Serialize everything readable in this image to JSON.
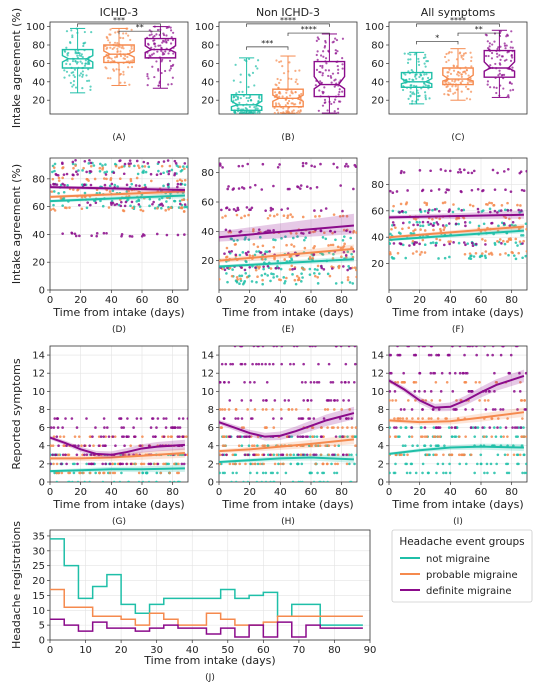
{
  "colors": {
    "not_migraine": "#1fbfa8",
    "probable_migraine": "#f58a4e",
    "definite_migraine": "#8b0b8b",
    "grid": "#e3e3e3",
    "frame": "#333333"
  },
  "chart_data": [
    {
      "id": "A",
      "type": "box",
      "panel_label": "(A)",
      "title": "ICHD-3",
      "ylabel": "Intake agreement (%)",
      "ylim": [
        5,
        105
      ],
      "yticks": [
        20,
        40,
        60,
        80,
        100
      ],
      "groups": [
        {
          "name": "not migraine",
          "min": 28,
          "q1": 55,
          "median": 65,
          "q3": 75,
          "max": 98
        },
        {
          "name": "probable migraine",
          "min": 36,
          "q1": 61,
          "median": 70,
          "q3": 80,
          "max": 98
        },
        {
          "name": "definite migraine",
          "min": 33,
          "q1": 66,
          "median": 75,
          "q3": 87,
          "max": 100
        }
      ],
      "significance": [
        {
          "from": 0,
          "to": 2,
          "label": "***"
        },
        {
          "from": 1,
          "to": 2,
          "label": "**"
        }
      ]
    },
    {
      "id": "B",
      "type": "box",
      "panel_label": "(B)",
      "title": "Non ICHD-3",
      "ylabel": "",
      "ylim": [
        5,
        105
      ],
      "yticks": [
        20,
        40,
        60,
        80,
        100
      ],
      "groups": [
        {
          "name": "not migraine",
          "min": 6,
          "q1": 9,
          "median": 15,
          "q3": 26,
          "max": 66
        },
        {
          "name": "probable migraine",
          "min": 6,
          "q1": 13,
          "median": 22,
          "q3": 32,
          "max": 68
        },
        {
          "name": "definite migraine",
          "min": 6,
          "q1": 24,
          "median": 37,
          "q3": 62,
          "max": 92
        }
      ],
      "significance": [
        {
          "from": 0,
          "to": 2,
          "label": "****"
        },
        {
          "from": 0,
          "to": 1,
          "label": "***"
        },
        {
          "from": 1,
          "to": 2,
          "label": "****"
        }
      ]
    },
    {
      "id": "C",
      "type": "box",
      "panel_label": "(C)",
      "title": "All symptoms",
      "ylabel": "",
      "ylim": [
        5,
        105
      ],
      "yticks": [
        20,
        40,
        60,
        80,
        100
      ],
      "groups": [
        {
          "name": "not migraine",
          "min": 16,
          "q1": 34,
          "median": 40,
          "q3": 50,
          "max": 72
        },
        {
          "name": "probable migraine",
          "min": 20,
          "q1": 37,
          "median": 43,
          "q3": 55,
          "max": 76
        },
        {
          "name": "definite migraine",
          "min": 23,
          "q1": 45,
          "median": 55,
          "q3": 74,
          "max": 96
        }
      ],
      "significance": [
        {
          "from": 0,
          "to": 2,
          "label": "****"
        },
        {
          "from": 0,
          "to": 1,
          "label": "*"
        },
        {
          "from": 1,
          "to": 2,
          "label": "**"
        }
      ]
    },
    {
      "id": "D",
      "type": "scatter",
      "panel_label": "(D)",
      "xlabel": "Time from intake (days)",
      "ylabel": "Intake agreement (%)",
      "xlim": [
        0,
        90
      ],
      "ylim": [
        0,
        95
      ],
      "xticks": [
        0,
        20,
        40,
        60,
        80
      ],
      "yticks": [
        0,
        20,
        40,
        60,
        80
      ],
      "grid": true,
      "series": [
        {
          "name": "not migraine",
          "trend_x": [
            0,
            88
          ],
          "trend_y": [
            64,
            68
          ],
          "band": [
            2,
            2
          ],
          "point_levels": [
            60,
            65,
            70,
            75,
            85,
            90
          ]
        },
        {
          "name": "probable migraine",
          "trend_x": [
            0,
            88
          ],
          "trend_y": [
            67,
            71
          ],
          "band": [
            2,
            2
          ],
          "point_levels": [
            58,
            66,
            72,
            80,
            88
          ]
        },
        {
          "name": "definite migraine",
          "trend_x": [
            0,
            88
          ],
          "trend_y": [
            74,
            72
          ],
          "band": [
            2,
            2
          ],
          "point_levels": [
            40,
            62,
            75,
            84,
            92
          ]
        }
      ]
    },
    {
      "id": "E",
      "type": "scatter",
      "panel_label": "(E)",
      "xlabel": "Time from intake (days)",
      "ylabel": "",
      "xlim": [
        0,
        90
      ],
      "ylim": [
        0,
        90
      ],
      "xticks": [
        0,
        20,
        40,
        60,
        80
      ],
      "yticks": [
        20,
        40,
        60,
        80
      ],
      "grid": true,
      "series": [
        {
          "name": "not migraine",
          "trend_x": [
            0,
            88
          ],
          "trend_y": [
            16,
            21
          ],
          "band": [
            2,
            2
          ],
          "point_levels": [
            5,
            10,
            15,
            20,
            25,
            35
          ]
        },
        {
          "name": "probable migraine",
          "trend_x": [
            0,
            88
          ],
          "trend_y": [
            20,
            28
          ],
          "band": [
            3,
            3
          ],
          "point_levels": [
            8,
            15,
            22,
            30,
            40,
            50
          ]
        },
        {
          "name": "definite migraine",
          "trend_x": [
            0,
            88
          ],
          "trend_y": [
            36,
            44
          ],
          "band": [
            6,
            8
          ],
          "point_levels": [
            15,
            25,
            40,
            55,
            70,
            85
          ]
        }
      ]
    },
    {
      "id": "F",
      "type": "scatter",
      "panel_label": "(F)",
      "xlabel": "Time from intake (days)",
      "ylabel": "",
      "xlim": [
        0,
        90
      ],
      "ylim": [
        0,
        100
      ],
      "xticks": [
        0,
        20,
        40,
        60,
        80
      ],
      "yticks": [
        20,
        40,
        60,
        80
      ],
      "grid": true,
      "series": [
        {
          "name": "not migraine",
          "trend_x": [
            0,
            88
          ],
          "trend_y": [
            38,
            45
          ],
          "band": [
            2,
            2
          ],
          "point_levels": [
            25,
            35,
            42,
            50,
            60
          ]
        },
        {
          "name": "probable migraine",
          "trend_x": [
            0,
            88
          ],
          "trend_y": [
            40,
            48
          ],
          "band": [
            2,
            2
          ],
          "point_levels": [
            28,
            38,
            46,
            55,
            65
          ]
        },
        {
          "name": "definite migraine",
          "trend_x": [
            0,
            88
          ],
          "trend_y": [
            55,
            57
          ],
          "band": [
            3,
            3
          ],
          "point_levels": [
            35,
            50,
            60,
            75,
            90
          ]
        }
      ]
    },
    {
      "id": "G",
      "type": "scatter",
      "panel_label": "(G)",
      "xlabel": "Time from intake (days)",
      "ylabel": "Reported symptoms",
      "xlim": [
        0,
        90
      ],
      "ylim": [
        0,
        15
      ],
      "xticks": [
        0,
        20,
        40,
        60,
        80
      ],
      "yticks": [
        0,
        2,
        4,
        6,
        8,
        10,
        12,
        14
      ],
      "grid": true,
      "series": [
        {
          "name": "not migraine",
          "trend_x": [
            0,
            20,
            40,
            60,
            88
          ],
          "trend_y": [
            1.2,
            1.3,
            1.4,
            1.4,
            1.5
          ],
          "band": [
            0.3,
            0.3
          ],
          "point_levels": [
            0,
            1,
            2,
            3
          ]
        },
        {
          "name": "probable migraine",
          "trend_x": [
            0,
            20,
            40,
            60,
            88
          ],
          "trend_y": [
            2.6,
            2.6,
            2.7,
            2.9,
            3.2
          ],
          "band": [
            0.4,
            0.4
          ],
          "point_levels": [
            1,
            2,
            3,
            4,
            5
          ]
        },
        {
          "name": "definite migraine",
          "trend_x": [
            0,
            10,
            20,
            30,
            40,
            50,
            60,
            70,
            88
          ],
          "trend_y": [
            4.9,
            4.3,
            3.6,
            3.1,
            3.0,
            3.3,
            3.7,
            3.9,
            4.1
          ],
          "band": [
            0.4,
            0.4
          ],
          "point_levels": [
            2,
            3,
            4,
            5,
            6,
            7
          ]
        }
      ]
    },
    {
      "id": "H",
      "type": "scatter",
      "panel_label": "(H)",
      "xlabel": "Time from intake (days)",
      "ylabel": "",
      "xlim": [
        0,
        90
      ],
      "ylim": [
        0,
        15
      ],
      "xticks": [
        0,
        20,
        40,
        60,
        80
      ],
      "yticks": [
        0,
        2,
        4,
        6,
        8,
        10,
        12,
        14
      ],
      "grid": true,
      "series": [
        {
          "name": "not migraine",
          "trend_x": [
            0,
            20,
            40,
            60,
            88
          ],
          "trend_y": [
            2.2,
            2.4,
            2.6,
            2.7,
            2.5
          ],
          "band": [
            0.3,
            0.3
          ],
          "point_levels": [
            0,
            1,
            2,
            3,
            4,
            5
          ]
        },
        {
          "name": "probable migraine",
          "trend_x": [
            0,
            20,
            40,
            60,
            88
          ],
          "trend_y": [
            3.4,
            3.6,
            3.9,
            4.2,
            4.7
          ],
          "band": [
            0.4,
            0.4
          ],
          "point_levels": [
            2,
            3,
            4,
            5,
            6,
            8
          ]
        },
        {
          "name": "definite migraine",
          "trend_x": [
            0,
            10,
            20,
            30,
            40,
            50,
            60,
            70,
            88
          ],
          "trend_y": [
            6.6,
            6.0,
            5.4,
            5.0,
            5.1,
            5.6,
            6.2,
            6.8,
            7.6
          ],
          "band": [
            0.5,
            0.5
          ],
          "point_levels": [
            3,
            5,
            7,
            9,
            11,
            13,
            15
          ]
        }
      ]
    },
    {
      "id": "I",
      "type": "scatter",
      "panel_label": "(I)",
      "xlabel": "Time from intake (days)",
      "ylabel": "",
      "xlim": [
        0,
        90
      ],
      "ylim": [
        0,
        15
      ],
      "xticks": [
        0,
        20,
        40,
        60,
        80
      ],
      "yticks": [
        0,
        2,
        4,
        6,
        8,
        10,
        12,
        14
      ],
      "grid": true,
      "series": [
        {
          "name": "not migraine",
          "trend_x": [
            0,
            20,
            40,
            60,
            88
          ],
          "trend_y": [
            3.1,
            3.5,
            3.8,
            3.9,
            3.8
          ],
          "band": [
            0.3,
            0.3
          ],
          "point_levels": [
            1,
            2,
            3,
            4,
            5,
            6
          ]
        },
        {
          "name": "probable migraine",
          "trend_x": [
            0,
            20,
            40,
            60,
            88
          ],
          "trend_y": [
            6.8,
            6.6,
            6.7,
            7.1,
            7.7
          ],
          "band": [
            0.4,
            0.4
          ],
          "point_levels": [
            3,
            5,
            7,
            9,
            11
          ]
        },
        {
          "name": "definite migraine",
          "trend_x": [
            0,
            10,
            20,
            30,
            40,
            50,
            60,
            70,
            88
          ],
          "trend_y": [
            11.2,
            10.2,
            9.0,
            8.2,
            8.3,
            9.0,
            9.9,
            10.7,
            11.7
          ],
          "band": [
            0.5,
            0.5
          ],
          "point_levels": [
            6,
            8,
            10,
            12,
            14,
            15
          ]
        }
      ]
    },
    {
      "id": "J",
      "type": "step",
      "panel_label": "(J)",
      "xlabel": "Time from intake (days)",
      "ylabel": "Headache registrations",
      "xlim": [
        0,
        90
      ],
      "ylim": [
        0,
        37
      ],
      "xticks": [
        0,
        10,
        20,
        30,
        40,
        50,
        60,
        70,
        80,
        90
      ],
      "yticks": [
        0,
        5,
        10,
        15,
        20,
        25,
        30,
        35
      ],
      "grid": true,
      "legend": {
        "title": "Headache event groups",
        "placement": "right"
      },
      "bin_edges": [
        0,
        4,
        8,
        12,
        16,
        20,
        24,
        28,
        32,
        36,
        40,
        44,
        48,
        52,
        56,
        60,
        64,
        68,
        72,
        76,
        80,
        84,
        88
      ],
      "series": [
        {
          "name": "not migraine",
          "values": [
            34,
            25,
            14,
            18,
            22,
            12,
            9,
            12,
            14,
            14,
            14,
            14,
            17,
            14,
            15,
            16,
            8,
            12,
            12,
            5,
            5,
            5
          ]
        },
        {
          "name": "probable migraine",
          "values": [
            17,
            11,
            11,
            8,
            8,
            7,
            5,
            9,
            7,
            5,
            5,
            9,
            7,
            5,
            5,
            6,
            8,
            8,
            8,
            8,
            8,
            8
          ]
        },
        {
          "name": "definite migraine",
          "values": [
            7,
            5,
            3,
            6,
            4,
            4,
            3,
            4,
            5,
            4,
            4,
            2,
            4,
            1,
            5,
            1,
            6,
            1,
            5,
            4,
            4,
            4
          ]
        }
      ]
    }
  ]
}
